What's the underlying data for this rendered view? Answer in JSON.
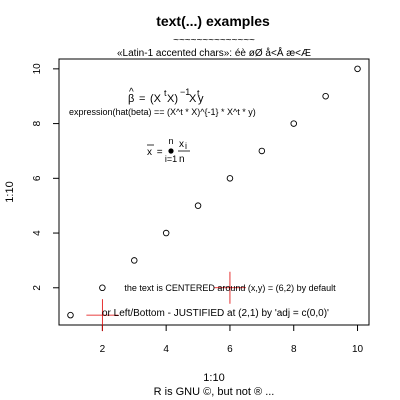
{
  "chart_data": {
    "type": "scatter",
    "title": "text(...) examples",
    "title_underline": "~~~~~~~~~~~~~~",
    "subtitle": "«Latin-1 accented chars»: éè øØ å<Å æ<Æ",
    "xlabel": "1:10",
    "ylabel": "1:10",
    "sublabel": "R is GNU ©, but not ® ...",
    "x": [
      1,
      2,
      3,
      4,
      5,
      6,
      7,
      8,
      9,
      10
    ],
    "y": [
      1,
      2,
      3,
      4,
      5,
      6,
      7,
      8,
      9,
      10
    ],
    "xlim": [
      0.64,
      10.36
    ],
    "ylim": [
      0.64,
      10.36
    ],
    "xticks": [
      2,
      4,
      6,
      8,
      10
    ],
    "yticks": [
      2,
      4,
      6,
      8,
      10
    ],
    "grid": false,
    "crosshairs": [
      {
        "x": 6,
        "y": 2
      },
      {
        "x": 2,
        "y": 1
      }
    ],
    "annotations": {
      "expr_text": "expression(hat(beta) == (X^t * X)^{-1} * X^t * y)",
      "centered_text": "the text is CENTERED around (x,y) = (6,2) by default",
      "justified_text": "or Left/Bottom - JUSTIFIED at (2,1) by 'adj = c(0,0)'",
      "beta": {
        "hat": "^",
        "beta": "β",
        "eq": " = ",
        "lparen": "(X",
        "t1": "t",
        "mid": "X)",
        "inv": "−1",
        "x2": "X",
        "t2": "t",
        "y": "y"
      },
      "xbar": {
        "xbar": "x",
        "eq": " = ",
        "n_top": "n",
        "i_eq_1": "i=1",
        "xi": "x",
        "i_sub": "i",
        "n_bottom": "n"
      }
    }
  }
}
